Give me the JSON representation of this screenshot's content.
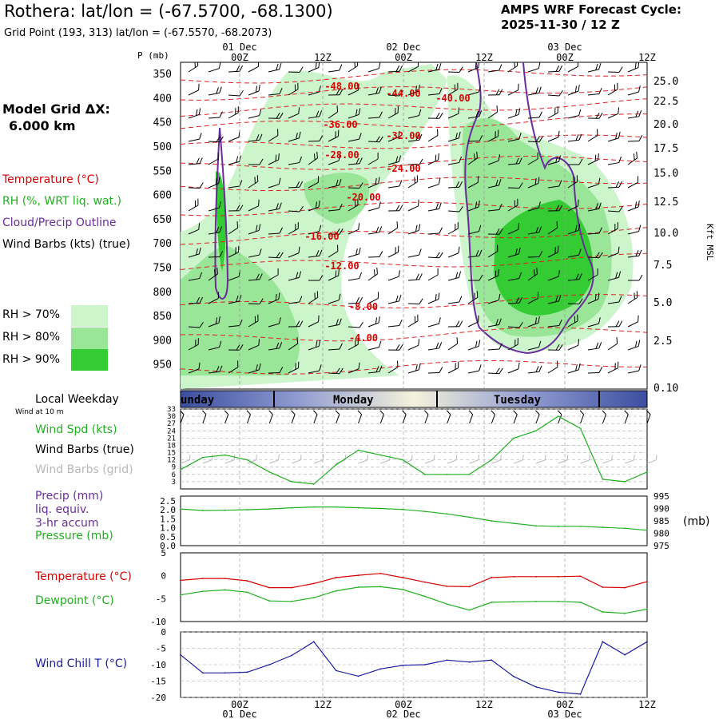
{
  "header": {
    "title": "Rothera:  lat/lon = (-67.5700, -68.1300)",
    "grid_point": "Grid Point (193, 313) lat/lon = (-67.5570, -68.2073)",
    "cycle_line1": "AMPS WRF Forecast Cycle:",
    "cycle_line2": "2025-11-30 / 12  Z"
  },
  "legend": {
    "model_grid_line1": "Model Grid ΔX:",
    "model_grid_line2": "6.000 km",
    "temperature": "Temperature (°C)",
    "rh": "RH (%, WRT liq. wat.)",
    "cloud": "Cloud/Precip Outline",
    "wind_barbs": "Wind Barbs (kts) (true)",
    "rh70": "RH > 70%",
    "rh80": "RH > 80%",
    "rh90": "RH > 90%",
    "colors": {
      "rh70": "#ccf5cc",
      "rh80": "#99e699",
      "rh90": "#33cc33"
    }
  },
  "time_axis": {
    "labels": [
      "00Z",
      "12Z",
      "00Z",
      "12Z",
      "00Z",
      "12Z"
    ],
    "dates": [
      "01 Dec",
      "02 Dec",
      "03 Dec"
    ]
  },
  "weekday_bar": {
    "label": "Local Weekday",
    "days": [
      "unday",
      "Monday",
      "Tuesday"
    ]
  },
  "wind_panel": {
    "note": "Wind at 10 m",
    "spd_label": "Wind Spd (kts)",
    "barbs_true": "Wind Barbs (true)",
    "barbs_grid": "Wind Barbs (grid)"
  },
  "precip_panel": {
    "line1": "Precip (mm)",
    "line2": "liq. equiv.",
    "line3": "3-hr accum",
    "pressure": "Pressure (mb)",
    "right_unit": "(mb)"
  },
  "temp_panel": {
    "temperature": "Temperature (°C)",
    "dewpoint": "Dewpoint (°C)"
  },
  "chill_panel": {
    "label": "Wind Chill T (°C)"
  },
  "chart_data": [
    {
      "type": "heatmap",
      "title": "Time-height cross section",
      "ylabel": "P (mb)",
      "y2label": "Kft MSL",
      "p_ticks": [
        350,
        400,
        450,
        500,
        550,
        600,
        650,
        700,
        750,
        800,
        850,
        900,
        950
      ],
      "kft_ticks": [
        "25.0",
        "22.5",
        "20.0",
        "17.5",
        "15.0",
        "12.5",
        "10.0",
        "7.5",
        "5.0",
        "2.5",
        "0.10"
      ],
      "isotherm_labels": [
        "-48.00",
        "-44.00",
        "-40.00",
        "-36.00",
        "-32.00",
        "-28.00",
        "-24.00",
        "-20.00",
        "-16.00",
        "-12.00",
        "-8.00",
        "-4.00"
      ]
    },
    {
      "type": "line",
      "name": "wind speed",
      "ylabel": "Wind Spd (kts)",
      "y_ticks": [
        3,
        6,
        9,
        12,
        15,
        18,
        21,
        24,
        27,
        30,
        33
      ],
      "ylim": [
        0,
        33
      ],
      "x_hours": [
        0,
        6,
        12,
        18,
        24,
        30,
        36,
        42,
        48,
        54,
        60,
        66,
        72,
        78,
        84,
        90,
        96,
        102,
        108,
        114,
        120,
        126
      ],
      "values": [
        8,
        13,
        14,
        12,
        7,
        3,
        2,
        10,
        16,
        14,
        12,
        6,
        6,
        6,
        12,
        21,
        24,
        30,
        25,
        4,
        3,
        7
      ]
    },
    {
      "type": "line",
      "name": "sea-level pressure",
      "y_ticks_left": [
        "2.5",
        "2.0",
        "1.5",
        "1.0",
        "0.5",
        "0.0"
      ],
      "y_ticks_right": [
        995,
        990,
        985,
        980,
        975
      ],
      "ylim": [
        975,
        995
      ],
      "x_hours": [
        0,
        6,
        12,
        18,
        24,
        30,
        36,
        42,
        48,
        54,
        60,
        66,
        72,
        78,
        84,
        90,
        96,
        102,
        108,
        114,
        120,
        126
      ],
      "values": [
        989.8,
        989.2,
        989.3,
        989.5,
        989.8,
        990.3,
        990.6,
        990.6,
        990.3,
        990.0,
        989.6,
        988.8,
        987.8,
        986.5,
        985.0,
        984.0,
        983.0,
        982.8,
        982.8,
        982.4,
        982.0,
        981.2
      ]
    },
    {
      "type": "line",
      "name": "temperature and dewpoint",
      "y_ticks": [
        5,
        0,
        -5,
        -10
      ],
      "ylim": [
        -10,
        5
      ],
      "x_hours": [
        0,
        6,
        12,
        18,
        24,
        30,
        36,
        42,
        48,
        54,
        60,
        66,
        72,
        78,
        84,
        90,
        96,
        102,
        108,
        114,
        120,
        126
      ],
      "series": [
        {
          "name": "Temperature",
          "color": "#d80000",
          "values": [
            -1.0,
            -0.6,
            -0.6,
            -1.1,
            -2.6,
            -2.6,
            -1.7,
            -0.4,
            0.1,
            0.5,
            -0.4,
            -1.4,
            -2.3,
            -2.4,
            -0.4,
            -0.2,
            -0.2,
            -0.2,
            -0.1,
            -2.5,
            -2.6,
            -1.3
          ]
        },
        {
          "name": "Dewpoint",
          "color": "#20b020",
          "values": [
            -4.2,
            -3.4,
            -3.1,
            -3.6,
            -5.5,
            -5.6,
            -4.8,
            -3.3,
            -2.5,
            -2.4,
            -3.0,
            -4.5,
            -6.2,
            -7.5,
            -5.8,
            -5.7,
            -5.6,
            -5.6,
            -5.8,
            -7.9,
            -8.2,
            -7.3
          ]
        }
      ]
    },
    {
      "type": "line",
      "name": "wind chill",
      "y_ticks": [
        0,
        -5,
        -10,
        -15,
        -20
      ],
      "ylim": [
        -20,
        0
      ],
      "x_hours": [
        0,
        6,
        12,
        18,
        24,
        30,
        36,
        42,
        48,
        54,
        60,
        66,
        72,
        78,
        84,
        90,
        96,
        102,
        108,
        114,
        120,
        126
      ],
      "values": [
        -7,
        -12.5,
        -12.5,
        -12.3,
        -10.0,
        -7.2,
        -3.0,
        -11.8,
        -13.5,
        -11.3,
        -10.2,
        -10.0,
        -8.6,
        -9.2,
        -8.6,
        -13.6,
        -16.8,
        -18.4,
        -19.0,
        -3.0,
        -7.0,
        -3.0
      ]
    }
  ]
}
